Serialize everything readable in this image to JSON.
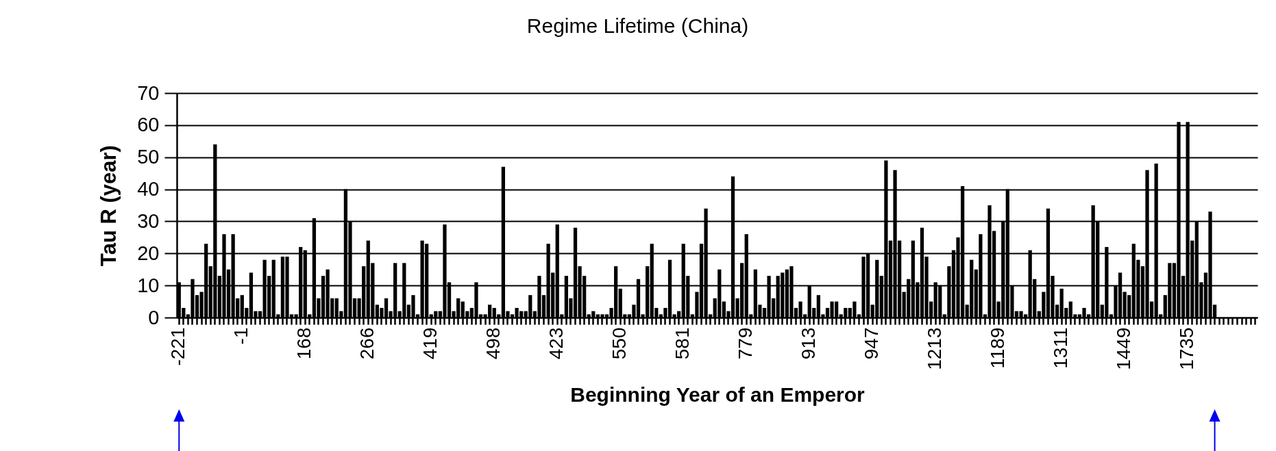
{
  "chart_data": {
    "type": "bar",
    "title": "Regime Lifetime (China)",
    "xlabel": "Beginning Year of an Emperor",
    "ylabel": "Tau R (year)",
    "categories": [
      "-221",
      null,
      null,
      null,
      null,
      null,
      null,
      null,
      null,
      null,
      null,
      null,
      null,
      null,
      "-1",
      null,
      null,
      null,
      null,
      null,
      null,
      null,
      null,
      null,
      null,
      null,
      null,
      null,
      "168",
      null,
      null,
      null,
      null,
      null,
      null,
      null,
      null,
      null,
      null,
      null,
      null,
      null,
      "266",
      null,
      null,
      null,
      null,
      null,
      null,
      null,
      null,
      null,
      null,
      null,
      null,
      null,
      "419",
      null,
      null,
      null,
      null,
      null,
      null,
      null,
      null,
      null,
      null,
      null,
      null,
      null,
      "498",
      null,
      null,
      null,
      null,
      null,
      null,
      null,
      null,
      null,
      null,
      null,
      null,
      null,
      "423",
      null,
      null,
      null,
      null,
      null,
      null,
      null,
      null,
      null,
      null,
      null,
      null,
      null,
      "550",
      null,
      null,
      null,
      null,
      null,
      null,
      null,
      null,
      null,
      null,
      null,
      null,
      null,
      "581",
      null,
      null,
      null,
      null,
      null,
      null,
      null,
      null,
      null,
      null,
      null,
      null,
      null,
      "779",
      null,
      null,
      null,
      null,
      null,
      null,
      null,
      null,
      null,
      null,
      null,
      null,
      null,
      "913",
      null,
      null,
      null,
      null,
      null,
      null,
      null,
      null,
      null,
      null,
      null,
      null,
      null,
      "947",
      null,
      null,
      null,
      null,
      null,
      null,
      null,
      null,
      null,
      null,
      null,
      null,
      null,
      "1213",
      null,
      null,
      null,
      null,
      null,
      null,
      null,
      null,
      null,
      null,
      null,
      null,
      null,
      "1189",
      null,
      null,
      null,
      null,
      null,
      null,
      null,
      null,
      null,
      null,
      null,
      null,
      null,
      "1311",
      null,
      null,
      null,
      null,
      null,
      null,
      null,
      null,
      null,
      null,
      null,
      null,
      null,
      "1449",
      null,
      null,
      null,
      null,
      null,
      null,
      null,
      null,
      null,
      null,
      null,
      null,
      null,
      "1735",
      null,
      null,
      null,
      null,
      null,
      null,
      null,
      null,
      null,
      null,
      null,
      null,
      null,
      null,
      null
    ],
    "values": [
      11,
      3,
      1,
      12,
      7,
      8,
      23,
      16,
      54,
      13,
      26,
      15,
      26,
      6,
      7,
      3,
      14,
      2,
      2,
      18,
      13,
      18,
      1,
      19,
      19,
      1,
      1,
      22,
      21,
      1,
      31,
      6,
      13,
      15,
      6,
      6,
      2,
      40,
      30,
      6,
      6,
      16,
      24,
      17,
      4,
      3,
      6,
      2,
      17,
      2,
      17,
      4,
      7,
      1,
      24,
      23,
      1,
      2,
      2,
      29,
      11,
      2,
      6,
      5,
      2,
      3,
      11,
      1,
      1,
      4,
      3,
      1,
      47,
      2,
      1,
      3,
      2,
      2,
      7,
      2,
      13,
      7,
      23,
      14,
      29,
      1,
      13,
      6,
      28,
      16,
      13,
      1,
      2,
      1,
      1,
      1,
      3,
      16,
      9,
      1,
      1,
      4,
      12,
      1,
      16,
      23,
      3,
      1,
      3,
      18,
      1,
      2,
      23,
      13,
      1,
      8,
      23,
      34,
      1,
      6,
      15,
      5,
      2,
      44,
      6,
      17,
      26,
      1,
      15,
      4,
      3,
      13,
      6,
      13,
      14,
      15,
      16,
      3,
      5,
      1,
      10,
      3,
      7,
      1,
      3,
      5,
      5,
      1,
      3,
      3,
      5,
      1,
      19,
      20,
      4,
      18,
      13,
      49,
      24,
      46,
      24,
      8,
      12,
      24,
      11,
      28,
      19,
      5,
      11,
      10,
      1,
      16,
      21,
      25,
      41,
      4,
      18,
      15,
      26,
      1,
      35,
      27,
      5,
      30,
      40,
      10,
      2,
      2,
      1,
      21,
      12,
      2,
      8,
      34,
      13,
      4,
      9,
      3,
      5,
      1,
      1,
      3,
      1,
      35,
      30,
      4,
      22,
      1,
      10,
      14,
      8,
      7,
      23,
      18,
      16,
      46,
      5,
      48,
      1,
      7,
      17,
      17,
      61,
      13,
      61,
      24,
      30,
      11,
      14,
      33,
      4,
      null,
      null,
      null,
      null,
      null,
      null,
      null,
      null,
      null
    ],
    "color": "#000000",
    "ylim": [
      0,
      70
    ],
    "yticks": [
      0,
      10,
      20,
      30,
      40,
      50,
      60,
      70
    ],
    "grid": "y"
  }
}
